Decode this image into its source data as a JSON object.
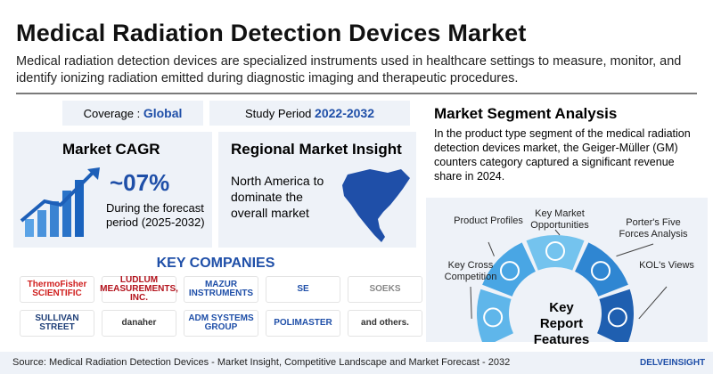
{
  "header": {
    "title": "Medical Radiation Detection Devices Market",
    "description": "Medical radiation detection devices are specialized instruments used in healthcare settings to measure, monitor, and identify ionizing radiation emitted during diagnostic imaging and therapeutic procedures."
  },
  "coverage": {
    "label": "Coverage :",
    "value": "Global"
  },
  "study_period": {
    "label": "Study Period",
    "value": "2022-2032"
  },
  "market_cagr": {
    "title": "Market CAGR",
    "value": "~07%",
    "text": "During the forecast period (2025-2032)"
  },
  "regional": {
    "title": "Regional Market Insight",
    "text": "North America to dominate the overall market"
  },
  "key_companies": {
    "title": "KEY COMPANIES",
    "companies": [
      "ThermoFisher SCIENTIFIC",
      "LUDLUM MEASUREMENTS, INC.",
      "MAZUR INSTRUMENTS",
      "SE",
      "SOEKS",
      "SULLIVAN STREET",
      "danaher",
      "ADM SYSTEMS GROUP",
      "POLIMASTER",
      "and others."
    ]
  },
  "segment": {
    "title": "Market Segment Analysis",
    "text": "In the product type segment of the medical radiation detection devices market, the Geiger-Müller (GM) counters category captured a significant revenue share in 2024."
  },
  "features": {
    "title": "Key Report Features",
    "items": [
      "Key Cross Competition",
      "Product Profiles",
      "Key Market Opportunities",
      "Porter's Five Forces Analysis",
      "KOL's Views"
    ]
  },
  "footer": {
    "source": "Source: Medical Radiation Detection Devices - Market Insight, Competitive Landscape and Market Forecast - 2032",
    "logo": "DELVEINSIGHT"
  }
}
